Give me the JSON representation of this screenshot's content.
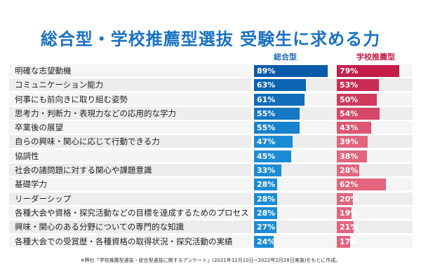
{
  "chart_data": {
    "type": "bar",
    "orientation": "horizontal",
    "title": "総合型・学校推薦型選抜 受験生に求める力",
    "categories": [
      "明確な志望動機",
      "コミュニケーション能力",
      "何事にも前向きに取り組む姿勢",
      "思考力・判断力・表現力などの応用的な学力",
      "卒業後の展望",
      "自らの興味・関心に応じて行動できる力",
      "協調性",
      "社会の諸問題に対する関心や課題意識",
      "基礎学力",
      "リーダーシップ",
      "各種大会や資格・探究活動などの目標を達成するためのプロセス",
      "興味・関心のある分野についての専門的な知識",
      "各種大会での受賞歴・各種資格の取得状況・探究活動の実績"
    ],
    "series": [
      {
        "name": "総合型",
        "color": "#1a6fbf",
        "values": [
          89,
          63,
          61,
          55,
          55,
          47,
          45,
          33,
          28,
          28,
          28,
          27,
          24
        ],
        "labels": [
          "89%",
          "63%",
          "61%",
          "55%",
          "55%",
          "47%",
          "45%",
          "33%",
          "28%",
          "28%",
          "28%",
          "27%",
          "24%"
        ]
      },
      {
        "name": "学校推薦型",
        "color": "#c8204a",
        "values": [
          79,
          53,
          50,
          54,
          43,
          39,
          38,
          28,
          62,
          20,
          19,
          21,
          17
        ],
        "labels": [
          "79%",
          "53%",
          "50%",
          "54%",
          "43%",
          "39%",
          "38%",
          "28%",
          "62%",
          "20%",
          "19%",
          "21%",
          "17%"
        ]
      }
    ],
    "xlim": [
      0,
      100
    ],
    "legend": "top",
    "grid": false
  },
  "footnote": "※弊社「学校推薦型選抜・総合型選抜に関するアンケート」(2021年12月10日~2022年2月28日実施)をもとに作成。"
}
